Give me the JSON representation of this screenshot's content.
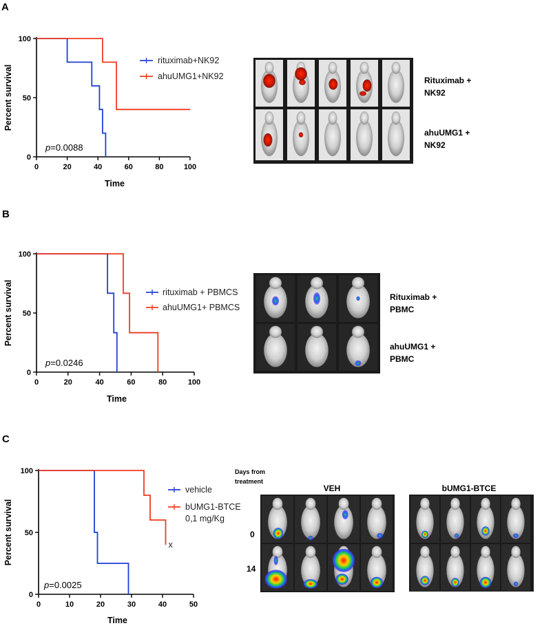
{
  "colors": {
    "blue": "#1f3fd6",
    "red": "#ef3b1f",
    "axis": "#000000"
  },
  "chart_data": [
    {
      "id": "A",
      "panel_label": "A",
      "type": "line",
      "subtype": "kaplan-meier",
      "xlabel": "Time",
      "ylabel": "Percent survival",
      "xlim": [
        0,
        100
      ],
      "ylim": [
        0,
        100
      ],
      "xticks": [
        0,
        20,
        40,
        60,
        80,
        100
      ],
      "yticks": [
        0,
        50,
        100
      ],
      "p_value_label": "p",
      "p_value_text": "=0.0088",
      "series": [
        {
          "name": "rituximab+NK92",
          "color": "blue",
          "steps": [
            [
              0,
              100
            ],
            [
              20,
              100
            ],
            [
              20,
              80
            ],
            [
              36,
              80
            ],
            [
              36,
              60
            ],
            [
              41,
              60
            ],
            [
              41,
              40
            ],
            [
              43,
              40
            ],
            [
              43,
              20
            ],
            [
              45,
              20
            ],
            [
              45,
              0
            ]
          ]
        },
        {
          "name": "ahuUMG1+NK92",
          "color": "red",
          "steps": [
            [
              0,
              100
            ],
            [
              43,
              100
            ],
            [
              43,
              80
            ],
            [
              52,
              80
            ],
            [
              52,
              40
            ],
            [
              100,
              40
            ]
          ]
        }
      ],
      "image_labels": [
        [
          "Rituximab +",
          "NK92"
        ],
        [
          "ahuUMG1 +",
          "NK92"
        ]
      ]
    },
    {
      "id": "B",
      "panel_label": "B",
      "type": "line",
      "subtype": "kaplan-meier",
      "xlabel": "Time",
      "ylabel": "Percent survival",
      "xlim": [
        0,
        100
      ],
      "ylim": [
        0,
        100
      ],
      "xticks": [
        0,
        20,
        40,
        60,
        80,
        100
      ],
      "yticks": [
        0,
        50,
        100
      ],
      "p_value_label": "p",
      "p_value_text": "=0.0246",
      "series": [
        {
          "name": "rituximab + PBMCS",
          "color": "blue",
          "steps": [
            [
              0,
              100
            ],
            [
              45,
              100
            ],
            [
              45,
              66.7
            ],
            [
              49,
              66.7
            ],
            [
              49,
              33.3
            ],
            [
              51,
              33.3
            ],
            [
              51,
              0
            ]
          ]
        },
        {
          "name": "ahuUMG1+ PBMCS",
          "color": "red",
          "steps": [
            [
              0,
              100
            ],
            [
              55,
              100
            ],
            [
              55,
              66.7
            ],
            [
              59,
              66.7
            ],
            [
              59,
              33.3
            ],
            [
              77,
              33.3
            ],
            [
              77,
              0
            ]
          ]
        }
      ],
      "image_labels": [
        [
          "Rituximab +",
          "PBMC"
        ],
        [
          "ahuUMG1 +",
          "PBMC"
        ]
      ]
    },
    {
      "id": "C",
      "panel_label": "C",
      "type": "line",
      "subtype": "kaplan-meier",
      "xlabel": "Time",
      "ylabel": "Percent survival",
      "xlim": [
        0,
        50
      ],
      "ylim": [
        0,
        100
      ],
      "xticks": [
        0,
        10,
        20,
        30,
        40,
        50
      ],
      "yticks": [
        0,
        50,
        100
      ],
      "p_value_label": "p",
      "p_value_text": "=0.0025",
      "series": [
        {
          "name": "vehicle",
          "color": "blue",
          "steps": [
            [
              0,
              100
            ],
            [
              18,
              100
            ],
            [
              18,
              50
            ],
            [
              19,
              50
            ],
            [
              19,
              25
            ],
            [
              29,
              25
            ],
            [
              29,
              0
            ]
          ]
        },
        {
          "name": "bUMG1-BTCE\n0,1 mg/Kg",
          "color": "red",
          "steps": [
            [
              0,
              100
            ],
            [
              34,
              100
            ],
            [
              34,
              80
            ],
            [
              36,
              80
            ],
            [
              36,
              60
            ],
            [
              41,
              60
            ],
            [
              41,
              40
            ]
          ]
        }
      ],
      "end_marker": "x",
      "image_header": [
        "Days from",
        "treatment"
      ],
      "image_groups": [
        "VEH",
        "bUMG1-BTCE"
      ],
      "image_rows": [
        "0",
        "14"
      ]
    }
  ]
}
